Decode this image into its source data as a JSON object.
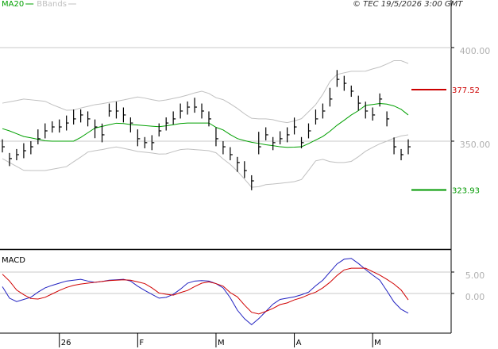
{
  "chart_data": [
    {
      "type": "ohlc",
      "source": "© TEC 19/5/2026 3:00 GMT",
      "categories": [
        null,
        null,
        null,
        null,
        null,
        null,
        null,
        null,
        "26",
        null,
        null,
        null,
        null,
        null,
        null,
        null,
        null,
        null,
        null,
        "F",
        null,
        null,
        null,
        null,
        null,
        null,
        null,
        null,
        null,
        null,
        "M",
        null,
        null,
        null,
        null,
        null,
        null,
        null,
        null,
        null,
        null,
        "A",
        null,
        null,
        null,
        null,
        null,
        null,
        null,
        null,
        null,
        null,
        "M",
        null,
        null,
        null,
        null,
        null
      ],
      "high": [
        351,
        343.7,
        345.8,
        348.9,
        350,
        356.3,
        359.5,
        360.6,
        361.6,
        363.7,
        366.9,
        367,
        365.9,
        361.6,
        359.4,
        370.1,
        371.1,
        368,
        362.7,
        356.3,
        352.2,
        353.2,
        359.5,
        362.7,
        365.9,
        370.1,
        371.2,
        373.2,
        370.1,
        365.9,
        357.3,
        350,
        346.8,
        341.6,
        339.3,
        331.8,
        355,
        357.4,
        352.2,
        355.3,
        357.4,
        362.6,
        352.2,
        359.5,
        366.9,
        370.1,
        378.5,
        388,
        384.9,
        379.7,
        374.3,
        371.1,
        368,
        375.5,
        365.9,
        352,
        345.8,
        351
      ],
      "low": [
        344,
        336.7,
        339.8,
        340.9,
        343,
        348.3,
        351.5,
        354.6,
        354.6,
        355.7,
        358.9,
        360,
        357.9,
        351.6,
        349.4,
        363.1,
        362.1,
        360,
        354.7,
        347.3,
        346.2,
        345.2,
        352.5,
        355.7,
        358.9,
        362.1,
        364.2,
        365.2,
        362.1,
        357.9,
        347.3,
        343,
        339.8,
        333.6,
        330.3,
        323.8,
        343,
        350.4,
        345.2,
        348.3,
        349.4,
        353.6,
        346.2,
        351.5,
        358.9,
        362.1,
        368.5,
        379,
        376.9,
        373.7,
        366.3,
        362.1,
        361,
        368.5,
        357.9,
        343,
        339.8,
        343
      ],
      "close": [
        347,
        340.7,
        342.8,
        344.9,
        347,
        351.3,
        355.5,
        357.6,
        357.6,
        359.7,
        361.9,
        364,
        361.9,
        357.6,
        353.4,
        366.1,
        366.1,
        364,
        359.7,
        351.3,
        349.2,
        349.2,
        355.5,
        359.7,
        361.9,
        366.1,
        368.2,
        368.2,
        366.1,
        361.9,
        351.3,
        347,
        342.8,
        338.6,
        334.3,
        328.8,
        347,
        353.4,
        349.2,
        351.3,
        353.4,
        357.6,
        349.2,
        355.5,
        361.9,
        366.1,
        372.5,
        383,
        380.9,
        376.7,
        370.3,
        366.1,
        364,
        372.5,
        361.9,
        347,
        342.8,
        347
      ],
      "bar_color": "#000000",
      "series": [
        {
          "name": "MA20",
          "color": "#00a000",
          "values": [
            356.7,
            355.5,
            354,
            352.5,
            351.8,
            351,
            350.2,
            350,
            350,
            350,
            350,
            352,
            354.5,
            357,
            357.9,
            358.8,
            359.6,
            359.4,
            358.9,
            358.6,
            358.3,
            358,
            357.7,
            358.2,
            358.8,
            359.4,
            359.7,
            359.7,
            359.7,
            359.7,
            357.4,
            356,
            353.5,
            351.4,
            350.3,
            349.4,
            348.8,
            348.1,
            347.6,
            347,
            346.7,
            346.8,
            347,
            348.7,
            350.6,
            352.5,
            355.3,
            358.5,
            361.2,
            364,
            366.3,
            369.1,
            369.6,
            370.1,
            369.8,
            368.8,
            367,
            364
          ]
        },
        {
          "name": "BBands",
          "color": "#c0c0c0",
          "upper": [
            370.3,
            371,
            371.7,
            372.5,
            372.1,
            371.7,
            371.3,
            369.5,
            368,
            366.5,
            366.6,
            367.7,
            368.6,
            369.5,
            370,
            370.7,
            371.3,
            372,
            372.8,
            373.6,
            373,
            372.2,
            371.5,
            372,
            372.8,
            373.6,
            374.6,
            375.8,
            376.7,
            375.5,
            373.2,
            372.2,
            370,
            367.5,
            364.6,
            362.2,
            361.9,
            361.9,
            361.5,
            360.5,
            359.9,
            360.8,
            362,
            365.7,
            369.5,
            375,
            381.8,
            385.6,
            386.5,
            387.3,
            387.3,
            387.4,
            388.6,
            389.6,
            391.2,
            393,
            393,
            391.5
          ],
          "lower": [
            340.7,
            338.6,
            336.5,
            334.4,
            334.3,
            334.3,
            334.3,
            335,
            335.7,
            336.4,
            339,
            341.5,
            344.2,
            344.9,
            345.5,
            346.3,
            346.9,
            346.2,
            345.4,
            344.5,
            344.1,
            343.7,
            343.1,
            343.2,
            344.4,
            345.5,
            345.8,
            345.5,
            345.2,
            344.9,
            343.8,
            340.5,
            337.6,
            334,
            329.8,
            325.4,
            325.7,
            326.8,
            327.1,
            327.5,
            327.9,
            328.4,
            329.5,
            334.4,
            339.5,
            340.3,
            339.1,
            338.6,
            338.6,
            339.2,
            341.7,
            344.6,
            346.7,
            348.6,
            350,
            351.6,
            352.8,
            353.4
          ]
        }
      ],
      "levels": [
        {
          "value": 377.52,
          "color": "#cc0000"
        },
        {
          "value": 323.93,
          "color": "#009900"
        }
      ],
      "ylim": [
        292.8,
        425.4
      ],
      "yticks": [
        {
          "value": 350,
          "label": "350.00"
        },
        {
          "value": 400,
          "label": "400.00"
        }
      ],
      "grid": true
    },
    {
      "type": "line",
      "title": "MACD",
      "series": [
        {
          "color": "#2020c0",
          "values": [
            1.6,
            -1.1,
            -1.9,
            -1.4,
            -0.9,
            0.3,
            1.3,
            1.9,
            2.4,
            2.9,
            3.1,
            3.3,
            2.9,
            2.6,
            2.8,
            3.1,
            3.2,
            3.3,
            2.9,
            1.7,
            0.7,
            -0.2,
            -1.1,
            -0.9,
            -0.2,
            1,
            2.4,
            2.9,
            3,
            2.9,
            2.3,
            1.3,
            -1,
            -3.9,
            -5.9,
            -7.3,
            -5.9,
            -4.2,
            -2.5,
            -1.4,
            -1.1,
            -0.8,
            -0.3,
            0.3,
            1.8,
            3.1,
            5,
            6.9,
            8,
            8.2,
            7,
            5.6,
            4.3,
            3.1,
            0.6,
            -2,
            -3.7,
            -4.6
          ]
        },
        {
          "color": "#d00000",
          "values": [
            4.5,
            2.9,
            0.8,
            -0.3,
            -1.2,
            -1.3,
            -0.9,
            -0.1,
            0.7,
            1.4,
            1.9,
            2.2,
            2.4,
            2.6,
            2.8,
            3,
            3.1,
            3.2,
            3.1,
            2.7,
            2.3,
            1.3,
            0.1,
            -0.2,
            -0.4,
            0.2,
            0.7,
            1.6,
            2.4,
            2.7,
            2.3,
            1.7,
            0.2,
            -0.8,
            -2.7,
            -4.4,
            -4.8,
            -4.2,
            -3.5,
            -2.6,
            -2.2,
            -1.5,
            -1,
            -0.3,
            0.3,
            1.3,
            2.6,
            4.2,
            5.5,
            5.9,
            5.9,
            5.9,
            5.1,
            4.3,
            3.3,
            2.2,
            0.8,
            -1.5
          ]
        }
      ],
      "ylim": [
        -8.9,
        10
      ],
      "yticks": [
        {
          "value": 0,
          "label": "0.00"
        },
        {
          "value": 5,
          "label": "5.00"
        }
      ],
      "grid": true
    }
  ]
}
